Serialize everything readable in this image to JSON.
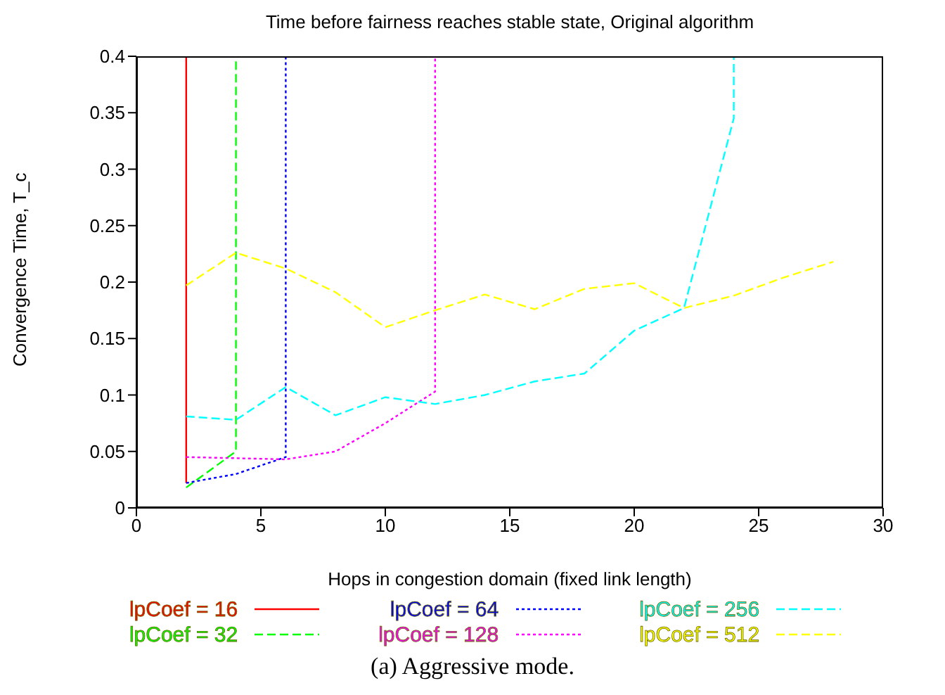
{
  "chart_data": {
    "type": "line",
    "title": "Time before fairness reaches stable state, Original algorithm",
    "xlabel": "Hops in congestion domain (fixed link length)",
    "ylabel": "Convergence Time, T_c",
    "xlim": [
      0,
      30
    ],
    "xticks": [
      0,
      5,
      10,
      15,
      20,
      25,
      30
    ],
    "ylim": [
      0,
      0.4
    ],
    "yticks": [
      0,
      0.05,
      0.1,
      0.15,
      0.2,
      0.25,
      0.3,
      0.35,
      0.4
    ],
    "legend": "bottom",
    "marker": "none",
    "annotations": [
      "(a) Aggressive mode."
    ],
    "series": [
      {
        "name": "lpCoef = 16",
        "color": "#ff0000",
        "line_style": "solid",
        "x": [
          2,
          2
        ],
        "values": [
          0.022,
          0.4
        ]
      },
      {
        "name": "lpCoef = 32",
        "color": "#00ff00",
        "line_style": "dashed",
        "x": [
          2,
          4,
          4
        ],
        "values": [
          0.018,
          0.05,
          0.4
        ]
      },
      {
        "name": "lpCoef = 64",
        "color": "#0000ff",
        "line_style": "dotted",
        "x": [
          2,
          4,
          6,
          6
        ],
        "values": [
          0.022,
          0.03,
          0.045,
          0.4
        ]
      },
      {
        "name": "lpCoef = 128",
        "color": "#ff00ff",
        "line_style": "dotted",
        "x": [
          2,
          4,
          6,
          8,
          10,
          12,
          12
        ],
        "values": [
          0.045,
          0.044,
          0.043,
          0.05,
          0.075,
          0.103,
          0.4
        ]
      },
      {
        "name": "lpCoef = 256",
        "color": "#00ffff",
        "line_style": "dashed",
        "x": [
          2,
          4,
          6,
          8,
          10,
          12,
          14,
          16,
          18,
          20,
          22,
          24,
          24
        ],
        "values": [
          0.081,
          0.078,
          0.107,
          0.082,
          0.098,
          0.092,
          0.1,
          0.112,
          0.119,
          0.157,
          0.177,
          0.345,
          0.4
        ]
      },
      {
        "name": "lpCoef = 512",
        "color": "#ffff00",
        "line_style": "dashed",
        "x": [
          2,
          4,
          6,
          8,
          10,
          12,
          14,
          16,
          18,
          20,
          22,
          24,
          26,
          28
        ],
        "values": [
          0.197,
          0.226,
          0.212,
          0.191,
          0.16,
          0.175,
          0.189,
          0.176,
          0.194,
          0.199,
          0.177,
          0.188,
          0.204,
          0.218
        ]
      }
    ]
  }
}
